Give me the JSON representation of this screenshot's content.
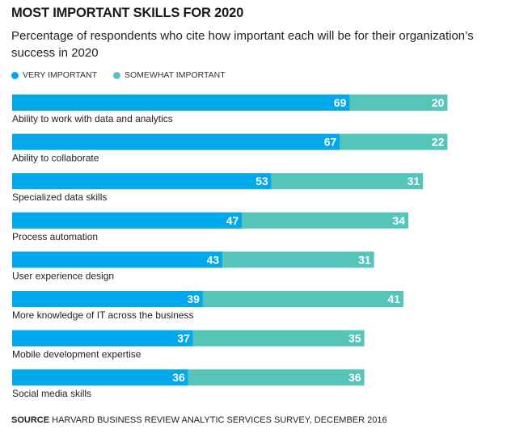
{
  "chart_data": {
    "type": "bar",
    "orientation": "horizontal",
    "stacked": true,
    "title": "MOST IMPORTANT SKILLS FOR 2020",
    "subtitle": "Percentage of respondents who cite how important each will be for their organization’s success in 2020",
    "categories": [
      "Ability to work with data and analytics",
      "Ability to collaborate",
      "Specialized data skills",
      "Process automation",
      "User experience design",
      "More knowledge of IT across the business",
      "Mobile development expertise",
      "Social media skills"
    ],
    "series": [
      {
        "name": "VERY IMPORTANT",
        "color": "#00a8ec",
        "values": [
          69,
          67,
          53,
          47,
          43,
          39,
          37,
          36
        ]
      },
      {
        "name": "SOMEWHAT IMPORTANT",
        "color": "#55c5ba",
        "values": [
          20,
          22,
          31,
          34,
          31,
          41,
          35,
          36
        ]
      }
    ],
    "xlim": [
      0,
      89
    ],
    "grid": false,
    "legend_position": "top-left",
    "source_label": "SOURCE",
    "source_text": "HARVARD BUSINESS REVIEW ANALYTIC SERVICES SURVEY, DECEMBER 2016"
  }
}
